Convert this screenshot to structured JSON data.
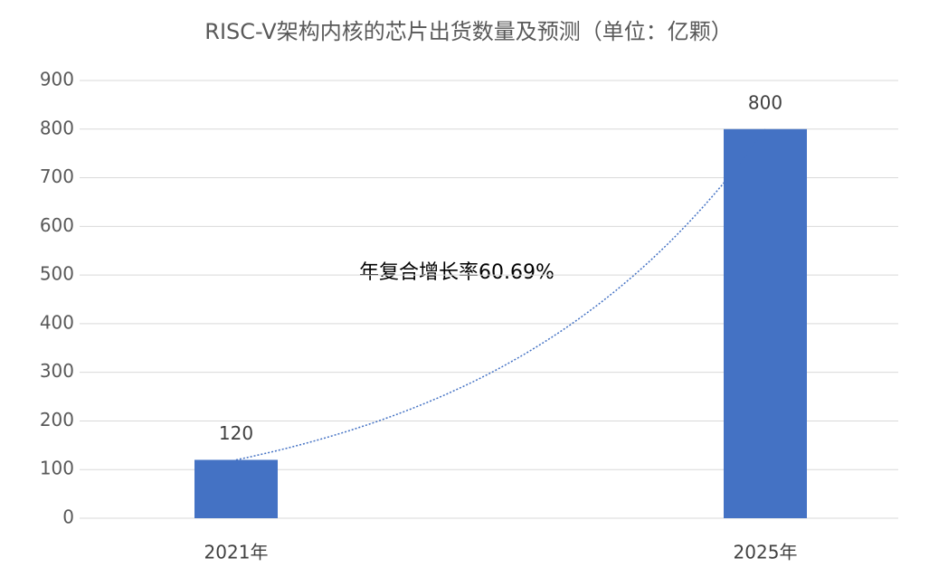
{
  "chart_data": {
    "type": "bar",
    "title": "RISC-V架构内核的芯片出货数量及预测（单位：亿颗）",
    "categories": [
      "2021年",
      "2025年"
    ],
    "values": [
      120,
      800
    ],
    "color": "#4472c4",
    "ylim": [
      0,
      900
    ],
    "yticks": [
      0,
      100,
      200,
      300,
      400,
      500,
      600,
      700,
      800,
      900
    ],
    "grid": true,
    "annotation": "年复合增长率60.69%"
  }
}
